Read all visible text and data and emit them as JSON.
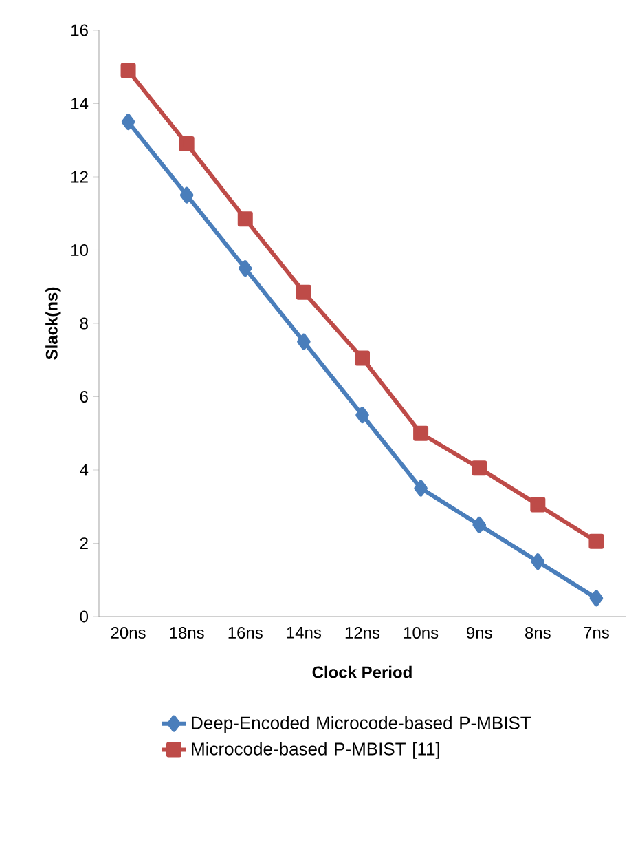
{
  "chart_data": {
    "type": "line",
    "xlabel": "Clock Period",
    "ylabel": "Slack(ns)",
    "categories": [
      "20ns",
      "18ns",
      "16ns",
      "14ns",
      "12ns",
      "10ns",
      "9ns",
      "8ns",
      "7ns"
    ],
    "ylim": [
      0,
      16
    ],
    "yticks": [
      0,
      2,
      4,
      6,
      8,
      10,
      12,
      14,
      16
    ],
    "legend": "bottom",
    "grid": false,
    "series": [
      {
        "name": "Deep-Encoded Microcode-based P-MBIST",
        "color": "#4a7ebb",
        "marker": "diamond",
        "values": [
          13.5,
          11.5,
          9.5,
          7.5,
          5.5,
          3.5,
          2.5,
          1.5,
          0.5
        ]
      },
      {
        "name": "Microcode-based P-MBIST [11]",
        "color": "#be4b48",
        "marker": "square",
        "values": [
          14.9,
          12.9,
          10.85,
          8.85,
          7.05,
          5.0,
          4.05,
          3.05,
          2.05
        ]
      }
    ]
  }
}
